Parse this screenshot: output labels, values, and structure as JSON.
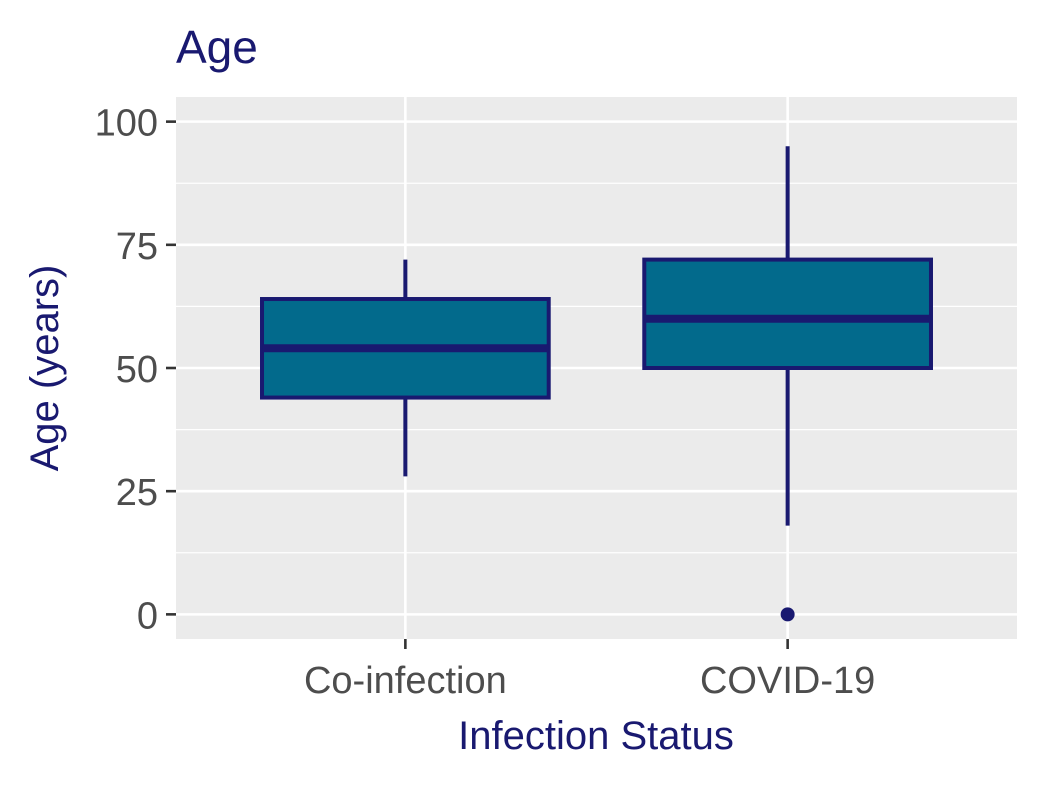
{
  "chart_data": {
    "type": "boxplot",
    "title": "Age",
    "xlabel": "Infection Status",
    "ylabel": "Age (years)",
    "ylim": [
      -5,
      105
    ],
    "y_ticks": [
      0,
      25,
      50,
      75,
      100
    ],
    "y_tick_labels": [
      "0",
      "25",
      "50",
      "75",
      "100"
    ],
    "grid": true,
    "colors": {
      "box_fill": "#026a8c",
      "box_stroke": "#191970",
      "title": "#191970",
      "panel_bg": "#ebebeb",
      "grid": "#ffffff",
      "tick_text": "#4d4d4d"
    },
    "categories": [
      "Co-infection",
      "COVID-19"
    ],
    "boxes": [
      {
        "category": "Co-infection",
        "whisker_low": 28,
        "q1": 44,
        "median": 54,
        "q3": 64,
        "whisker_high": 72,
        "outliers": []
      },
      {
        "category": "COVID-19",
        "whisker_low": 18,
        "q1": 50,
        "median": 60,
        "q3": 72,
        "whisker_high": 95,
        "outliers": [
          0
        ]
      }
    ]
  }
}
